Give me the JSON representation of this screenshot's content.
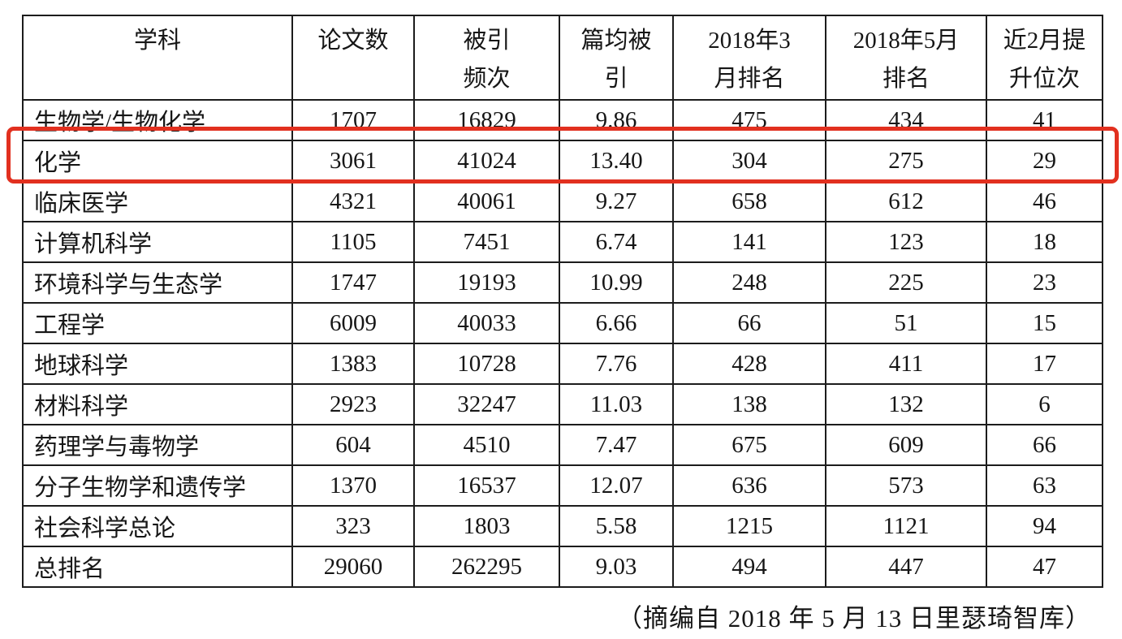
{
  "table": {
    "headers": [
      "学科",
      "论文数",
      "被引\n频次",
      "篇均被\n引",
      "2018年3\n月排名",
      "2018年5月\n排名",
      "近2月提\n升位次"
    ],
    "rows": [
      [
        "生物学/生物化学",
        "1707",
        "16829",
        "9.86",
        "475",
        "434",
        "41"
      ],
      [
        "化学",
        "3061",
        "41024",
        "13.40",
        "304",
        "275",
        "29"
      ],
      [
        "临床医学",
        "4321",
        "40061",
        "9.27",
        "658",
        "612",
        "46"
      ],
      [
        "计算机科学",
        "1105",
        "7451",
        "6.74",
        "141",
        "123",
        "18"
      ],
      [
        "环境科学与生态学",
        "1747",
        "19193",
        "10.99",
        "248",
        "225",
        "23"
      ],
      [
        "工程学",
        "6009",
        "40033",
        "6.66",
        "66",
        "51",
        "15"
      ],
      [
        "地球科学",
        "1383",
        "10728",
        "7.76",
        "428",
        "411",
        "17"
      ],
      [
        "材料科学",
        "2923",
        "32247",
        "11.03",
        "138",
        "132",
        "6"
      ],
      [
        "药理学与毒物学",
        "604",
        "4510",
        "7.47",
        "675",
        "609",
        "66"
      ],
      [
        "分子生物学和遗传学",
        "1370",
        "16537",
        "12.07",
        "636",
        "573",
        "63"
      ],
      [
        "社会科学总论",
        "323",
        "1803",
        "5.58",
        "1215",
        "1121",
        "94"
      ],
      [
        "总排名",
        "29060",
        "262295",
        "9.03",
        "494",
        "447",
        "47"
      ]
    ],
    "highlighted_subject": "化学",
    "highlight_color": "#e2301f"
  },
  "footer": {
    "source_note": "（摘编自 2018 年 5 月 13 日里瑟琦智库）"
  }
}
